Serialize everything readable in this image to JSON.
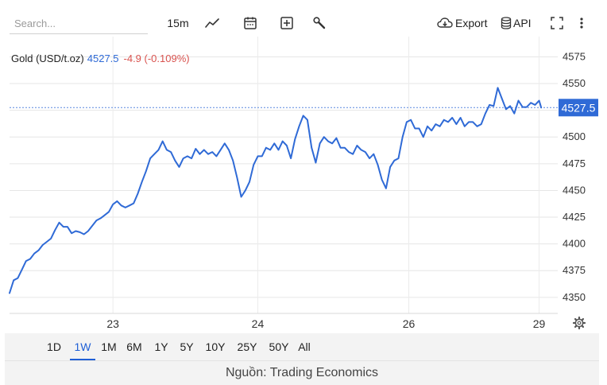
{
  "toolbar": {
    "search_placeholder": "Search...",
    "interval": "15m",
    "export_label": "Export",
    "api_label": "API"
  },
  "icons": [
    "line-chart-icon",
    "calendar-icon",
    "plus-box-icon",
    "wrench-icon",
    "cloud-download-icon",
    "database-icon",
    "fullscreen-icon",
    "more-vertical-icon",
    "settings-gear-icon"
  ],
  "legend": {
    "name": "Gold (USD/t.oz)",
    "price": "4527.5",
    "change": "-4.9 (-0.109%)"
  },
  "current_price_label": "4527.5",
  "colors": {
    "line": "#2f6ad6",
    "down": "#d9534f",
    "tag": "#2f6ad6"
  },
  "ranges": [
    "1D",
    "1W",
    "1M",
    "6M",
    "1Y",
    "5Y",
    "10Y",
    "25Y",
    "50Y",
    "All"
  ],
  "active_range": "1W",
  "source": "Nguồn: Trading Economics",
  "chart_data": {
    "type": "line",
    "series": [
      {
        "name": "Gold (USD/t.oz)",
        "points": [
          [
            0.0,
            4354
          ],
          [
            0.2,
            4366
          ],
          [
            0.4,
            4368
          ],
          [
            0.6,
            4376
          ],
          [
            0.8,
            4384
          ],
          [
            1.0,
            4386
          ],
          [
            1.2,
            4391
          ],
          [
            1.4,
            4394
          ],
          [
            1.6,
            4399
          ],
          [
            1.8,
            4402
          ],
          [
            2.0,
            4405
          ],
          [
            2.2,
            4413
          ],
          [
            2.4,
            4420
          ],
          [
            2.6,
            4416
          ],
          [
            2.8,
            4416
          ],
          [
            3.0,
            4410
          ],
          [
            3.2,
            4412
          ],
          [
            3.4,
            4411
          ],
          [
            3.6,
            4409
          ],
          [
            3.8,
            4412
          ],
          [
            4.0,
            4417
          ],
          [
            4.2,
            4422
          ],
          [
            4.4,
            4424
          ],
          [
            4.6,
            4427
          ],
          [
            4.8,
            4430
          ],
          [
            5.0,
            4437
          ],
          [
            5.2,
            4440
          ],
          [
            5.4,
            4436
          ],
          [
            5.6,
            4434
          ],
          [
            5.8,
            4436
          ],
          [
            6.0,
            4438
          ],
          [
            6.2,
            4447
          ],
          [
            6.4,
            4458
          ],
          [
            6.6,
            4468
          ],
          [
            6.8,
            4480
          ],
          [
            7.0,
            4484
          ],
          [
            7.2,
            4488
          ],
          [
            7.4,
            4496
          ],
          [
            7.6,
            4488
          ],
          [
            7.8,
            4486
          ],
          [
            8.0,
            4478
          ],
          [
            8.2,
            4472
          ],
          [
            8.4,
            4480
          ],
          [
            8.6,
            4482
          ],
          [
            8.8,
            4480
          ],
          [
            9.0,
            4489
          ],
          [
            9.2,
            4484
          ],
          [
            9.4,
            4488
          ],
          [
            9.6,
            4484
          ],
          [
            9.8,
            4486
          ],
          [
            10.0,
            4482
          ],
          [
            10.2,
            4488
          ],
          [
            10.4,
            4494
          ],
          [
            10.6,
            4488
          ],
          [
            10.8,
            4478
          ],
          [
            11.0,
            4462
          ],
          [
            11.2,
            4444
          ],
          [
            11.4,
            4450
          ],
          [
            11.6,
            4458
          ],
          [
            11.8,
            4474
          ],
          [
            12.0,
            4482
          ],
          [
            12.2,
            4482
          ],
          [
            12.4,
            4490
          ],
          [
            12.6,
            4488
          ],
          [
            12.8,
            4494
          ],
          [
            13.0,
            4488
          ],
          [
            13.2,
            4496
          ],
          [
            13.4,
            4492
          ],
          [
            13.6,
            4480
          ],
          [
            13.8,
            4498
          ],
          [
            14.0,
            4510
          ],
          [
            14.2,
            4520
          ],
          [
            14.4,
            4516
          ],
          [
            14.6,
            4490
          ],
          [
            14.8,
            4476
          ],
          [
            15.0,
            4494
          ],
          [
            15.2,
            4500
          ],
          [
            15.4,
            4496
          ],
          [
            15.6,
            4494
          ],
          [
            15.8,
            4499
          ],
          [
            16.0,
            4490
          ],
          [
            16.2,
            4490
          ],
          [
            16.4,
            4486
          ],
          [
            16.6,
            4484
          ],
          [
            16.8,
            4492
          ],
          [
            17.0,
            4488
          ],
          [
            17.2,
            4486
          ],
          [
            17.4,
            4480
          ],
          [
            17.6,
            4484
          ],
          [
            17.8,
            4474
          ],
          [
            18.0,
            4460
          ],
          [
            18.2,
            4452
          ],
          [
            18.4,
            4472
          ],
          [
            18.6,
            4478
          ],
          [
            18.8,
            4480
          ],
          [
            19.0,
            4500
          ],
          [
            19.2,
            4514
          ],
          [
            19.4,
            4516
          ],
          [
            19.6,
            4508
          ],
          [
            19.8,
            4508
          ],
          [
            20.0,
            4500
          ],
          [
            20.2,
            4510
          ],
          [
            20.4,
            4506
          ],
          [
            20.6,
            4512
          ],
          [
            20.8,
            4510
          ],
          [
            21.0,
            4516
          ],
          [
            21.2,
            4514
          ],
          [
            21.4,
            4518
          ],
          [
            21.6,
            4512
          ],
          [
            21.8,
            4518
          ],
          [
            22.0,
            4510
          ],
          [
            22.2,
            4514
          ],
          [
            22.4,
            4514
          ],
          [
            22.6,
            4510
          ],
          [
            22.8,
            4512
          ],
          [
            23.0,
            4522
          ],
          [
            23.2,
            4530
          ],
          [
            23.4,
            4529
          ],
          [
            23.6,
            4546
          ],
          [
            23.8,
            4536
          ],
          [
            24.0,
            4526
          ],
          [
            24.2,
            4529
          ],
          [
            24.4,
            4522
          ],
          [
            24.6,
            4534
          ],
          [
            24.8,
            4528
          ],
          [
            25.0,
            4528
          ],
          [
            25.2,
            4532
          ],
          [
            25.4,
            4530
          ],
          [
            25.6,
            4534
          ],
          [
            25.7,
            4527.5
          ]
        ]
      }
    ],
    "x_ticks": [
      {
        "x": 5,
        "label": "23"
      },
      {
        "x": 12,
        "label": "24"
      },
      {
        "x": 19.3,
        "label": "26"
      },
      {
        "x": 25.6,
        "label": "29"
      }
    ],
    "xlim": [
      0,
      26.5
    ],
    "y_ticks": [
      4350,
      4375,
      4400,
      4425,
      4450,
      4475,
      4500,
      4525,
      4550,
      4575
    ],
    "ylim": [
      4335,
      4585
    ],
    "reference_line": 4527.5,
    "xlabel": "",
    "ylabel": "",
    "grid": true
  }
}
